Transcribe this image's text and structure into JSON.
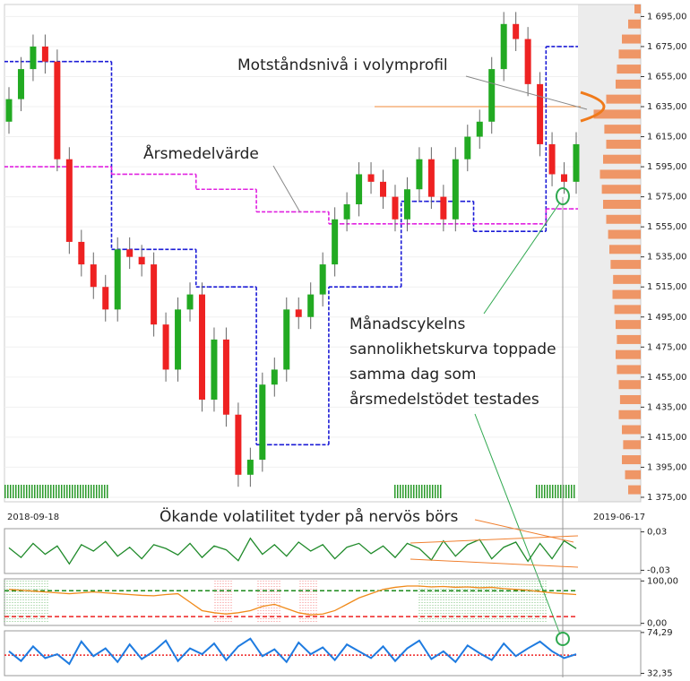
{
  "chart_data": [
    {
      "type": "candlestick",
      "x_labels": [
        "2018-09-18",
        "2019-06-17"
      ],
      "open": [
        1625,
        1640,
        1660,
        1675,
        1665,
        1600,
        1545,
        1530,
        1515,
        1500,
        1540,
        1535,
        1530,
        1490,
        1460,
        1500,
        1510,
        1440,
        1480,
        1430,
        1390,
        1400,
        1450,
        1460,
        1500,
        1495,
        1510,
        1530,
        1560,
        1570,
        1590,
        1585,
        1575,
        1560,
        1580,
        1600,
        1575,
        1560,
        1600,
        1615,
        1625,
        1660,
        1690,
        1680,
        1650,
        1610,
        1590,
        1585
      ],
      "high": [
        1648,
        1668,
        1683,
        1683,
        1673,
        1608,
        1553,
        1538,
        1523,
        1548,
        1548,
        1543,
        1538,
        1498,
        1508,
        1518,
        1518,
        1488,
        1488,
        1438,
        1408,
        1458,
        1468,
        1508,
        1508,
        1518,
        1538,
        1568,
        1578,
        1598,
        1598,
        1593,
        1583,
        1588,
        1608,
        1608,
        1583,
        1608,
        1623,
        1633,
        1668,
        1698,
        1698,
        1688,
        1658,
        1618,
        1598,
        1618
      ],
      "low": [
        1617,
        1632,
        1652,
        1657,
        1592,
        1537,
        1522,
        1507,
        1492,
        1492,
        1527,
        1522,
        1482,
        1452,
        1452,
        1492,
        1432,
        1432,
        1422,
        1382,
        1382,
        1392,
        1442,
        1452,
        1487,
        1487,
        1502,
        1522,
        1552,
        1562,
        1577,
        1567,
        1552,
        1552,
        1572,
        1567,
        1552,
        1552,
        1592,
        1607,
        1617,
        1652,
        1672,
        1642,
        1602,
        1582,
        1577,
        1577
      ],
      "close": [
        1640,
        1660,
        1675,
        1665,
        1600,
        1545,
        1530,
        1515,
        1500,
        1540,
        1535,
        1530,
        1490,
        1460,
        1500,
        1510,
        1440,
        1480,
        1430,
        1390,
        1400,
        1450,
        1460,
        1500,
        1495,
        1510,
        1530,
        1560,
        1570,
        1590,
        1585,
        1575,
        1560,
        1580,
        1600,
        1575,
        1560,
        1600,
        1615,
        1625,
        1660,
        1690,
        1680,
        1650,
        1610,
        1590,
        1585,
        1610
      ],
      "up_color": "#22aa22",
      "down_color": "#ee2222",
      "lines": [
        {
          "color": "#1a1ad6",
          "values": [
            1665,
            1665,
            1665,
            1665,
            1665,
            1665,
            1665,
            1665,
            1665,
            1540,
            1540,
            1540,
            1540,
            1540,
            1540,
            1540,
            1515,
            1515,
            1515,
            1515,
            1515,
            1410,
            1410,
            1410,
            1410,
            1410,
            1410,
            1515,
            1515,
            1515,
            1515,
            1515,
            1515,
            1572,
            1572,
            1572,
            1572,
            1572,
            1572,
            1552,
            1552,
            1552,
            1552,
            1552,
            1552,
            1675,
            1675,
            1675
          ]
        },
        {
          "color": "#e020e0",
          "values": [
            1595,
            1595,
            1595,
            1595,
            1595,
            1595,
            1595,
            1595,
            1595,
            1590,
            1590,
            1590,
            1590,
            1590,
            1590,
            1590,
            1580,
            1580,
            1580,
            1580,
            1580,
            1565,
            1565,
            1565,
            1565,
            1565,
            1565,
            1557,
            1557,
            1557,
            1557,
            1557,
            1557,
            1557,
            1557,
            1557,
            1557,
            1557,
            1557,
            1557,
            1557,
            1557,
            1557,
            1557,
            1557,
            1567,
            1567,
            1567
          ]
        }
      ],
      "resistance": 1635,
      "profile": {
        "color": "#f07a3a",
        "prices": [
          1380,
          1390,
          1400,
          1410,
          1420,
          1430,
          1440,
          1450,
          1460,
          1470,
          1480,
          1490,
          1500,
          1510,
          1520,
          1530,
          1540,
          1550,
          1560,
          1570,
          1580,
          1590,
          1600,
          1610,
          1620,
          1630,
          1640,
          1650,
          1660,
          1670,
          1680,
          1690,
          1700
        ],
        "values": [
          20,
          25,
          30,
          28,
          30,
          35,
          33,
          35,
          38,
          40,
          38,
          40,
          42,
          45,
          44,
          48,
          50,
          52,
          55,
          60,
          62,
          65,
          60,
          55,
          58,
          75,
          55,
          40,
          38,
          35,
          30,
          20,
          10
        ]
      },
      "annotations": [
        "Motståndsnivå i volymprofil",
        "Årsmedelvärde",
        "Månadscykelns",
        "sannolikhetskurva toppade",
        "samma dag som",
        "årsmedelstödet testades"
      ],
      "ylim": [
        1372,
        1703
      ],
      "yticks": [
        {
          "value": 1375,
          "label": "1 375,00"
        },
        {
          "value": 1395,
          "label": "1 395,00"
        },
        {
          "value": 1415,
          "label": "1 415,00"
        },
        {
          "value": 1435,
          "label": "1 435,00"
        },
        {
          "value": 1455,
          "label": "1 455,00"
        },
        {
          "value": 1475,
          "label": "1 475,00"
        },
        {
          "value": 1495,
          "label": "1 495,00"
        },
        {
          "value": 1515,
          "label": "1 515,00"
        },
        {
          "value": 1535,
          "label": "1 535,00"
        },
        {
          "value": 1555,
          "label": "1 555,00"
        },
        {
          "value": 1575,
          "label": "1 575,00"
        },
        {
          "value": 1595,
          "label": "1 595,00"
        },
        {
          "value": 1615,
          "label": "1 615,00"
        },
        {
          "value": 1635,
          "label": "1 635,00"
        },
        {
          "value": 1655,
          "label": "1 655,00"
        },
        {
          "value": 1675,
          "label": "1 675,00"
        },
        {
          "value": 1695,
          "label": "1 695,00"
        }
      ],
      "grid": true
    },
    {
      "type": "line",
      "annotation": "Ökande volatilitet tyder på nervös börs",
      "color": "#1f8a2a",
      "values": [
        0.005,
        -0.01,
        0.012,
        -0.005,
        0.008,
        -0.02,
        0.01,
        0.0,
        0.015,
        -0.008,
        0.006,
        -0.012,
        0.01,
        0.004,
        -0.006,
        0.012,
        -0.01,
        0.008,
        0.002,
        -0.015,
        0.02,
        -0.005,
        0.01,
        -0.008,
        0.014,
        0.0,
        0.01,
        -0.012,
        0.006,
        0.012,
        -0.004,
        0.008,
        -0.01,
        0.012,
        0.004,
        -0.014,
        0.016,
        -0.008,
        0.01,
        0.018,
        -0.012,
        0.006,
        0.014,
        -0.016,
        0.012,
        -0.012,
        0.016,
        0.004
      ],
      "ylim": [
        -0.035,
        0.035
      ],
      "yticks": [
        {
          "value": 0.03,
          "label": "0,03"
        },
        {
          "value": -0.03,
          "label": "-0,03"
        }
      ]
    },
    {
      "type": "line",
      "color": "#f08a1a",
      "values": [
        80,
        78,
        76,
        74,
        72,
        70,
        72,
        74,
        72,
        70,
        68,
        66,
        65,
        68,
        70,
        50,
        30,
        25,
        22,
        25,
        30,
        40,
        45,
        35,
        25,
        20,
        22,
        30,
        45,
        60,
        70,
        80,
        85,
        88,
        88,
        86,
        87,
        85,
        86,
        84,
        85,
        82,
        80,
        78,
        75,
        72,
        70,
        68
      ],
      "levels": [
        {
          "value": 77,
          "color": "#1a8a1a"
        },
        {
          "value": 16,
          "color": "#ee2222"
        }
      ],
      "ylim": [
        -5,
        105
      ],
      "yticks": [
        {
          "value": 100,
          "label": "100,00"
        },
        {
          "value": 0,
          "label": "0,00"
        }
      ]
    },
    {
      "type": "line",
      "color": "#1e7be0",
      "values": [
        55,
        45,
        60,
        48,
        52,
        42,
        65,
        50,
        58,
        44,
        62,
        47,
        55,
        66,
        45,
        58,
        52,
        63,
        46,
        60,
        68,
        50,
        57,
        44,
        64,
        52,
        59,
        46,
        62,
        55,
        48,
        60,
        45,
        58,
        66,
        47,
        55,
        44,
        61,
        53,
        46,
        63,
        50,
        58,
        65,
        55,
        48,
        52
      ],
      "levels": [
        {
          "value": 51,
          "color": "#ee2222"
        }
      ],
      "ylim": [
        30,
        76
      ],
      "yticks": [
        {
          "value": 74.29,
          "label": "74,29"
        },
        {
          "value": 32.35,
          "label": "32,35"
        }
      ]
    }
  ]
}
